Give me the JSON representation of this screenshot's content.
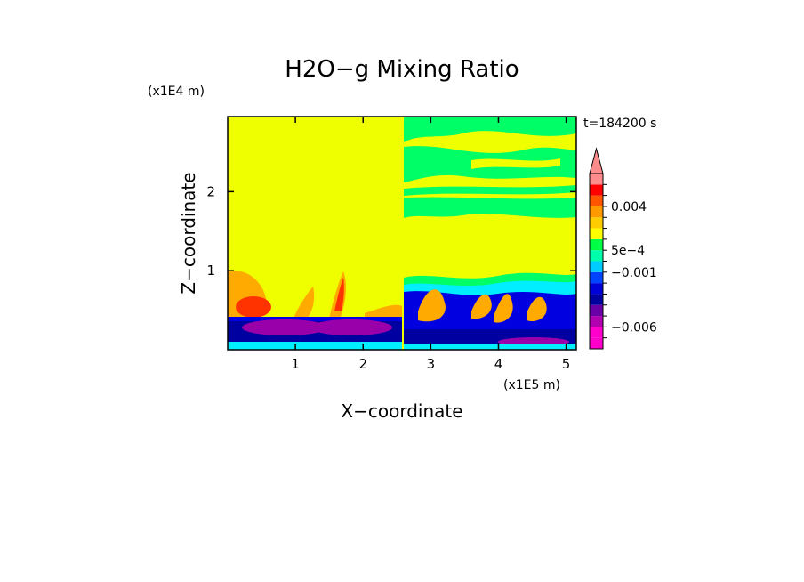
{
  "chart_data": {
    "type": "heatmap",
    "title": "H2O−g Mixing Ratio",
    "xlabel": "X−coordinate",
    "ylabel": "Z−coordinate",
    "x_scale_label": "(x1E5 m)",
    "y_scale_label": "(x1E4 m)",
    "time_label": "t=184200 s",
    "xlim": [
      0,
      5.15
    ],
    "ylim": [
      0,
      2.95
    ],
    "x_ticks": [
      {
        "value": 1,
        "label": "1"
      },
      {
        "value": 2,
        "label": "2"
      },
      {
        "value": 3,
        "label": "3"
      },
      {
        "value": 4,
        "label": "4"
      },
      {
        "value": 5,
        "label": "5"
      }
    ],
    "y_ticks": [
      {
        "value": 1,
        "label": "1"
      },
      {
        "value": 2,
        "label": "2"
      }
    ],
    "colorbar": {
      "levels": [
        {
          "value": -0.008,
          "color": "#ff00cc"
        },
        {
          "value": -0.007,
          "color": "#ff00cc"
        },
        {
          "value": -0.006,
          "color": "#b000b0"
        },
        {
          "value": -0.005,
          "color": "#6a00a8"
        },
        {
          "value": -0.004,
          "color": "#0000a0"
        },
        {
          "value": -0.003,
          "color": "#0000d8"
        },
        {
          "value": -0.002,
          "color": "#0044ff"
        },
        {
          "value": -0.001,
          "color": "#00ccff"
        },
        {
          "value": 0.0,
          "color": "#00ffaa"
        },
        {
          "value": 0.0005,
          "color": "#00ff44"
        },
        {
          "value": 0.001,
          "color": "#ffff00"
        },
        {
          "value": 0.002,
          "color": "#ffcc00"
        },
        {
          "value": 0.003,
          "color": "#ff9900"
        },
        {
          "value": 0.004,
          "color": "#ff5500"
        },
        {
          "value": 0.005,
          "color": "#ff0000"
        },
        {
          "value": 0.006,
          "color": "#ff8c8c"
        }
      ],
      "labels": [
        {
          "value": 0.004,
          "text": "0.004"
        },
        {
          "value": 0.0005,
          "text": "5e−4"
        },
        {
          "value": -0.001,
          "text": "−0.001"
        },
        {
          "value": -0.006,
          "text": "−0.006"
        }
      ],
      "extend": "max"
    },
    "colors": {
      "yellow": "#f0ff00",
      "green": "#00ff66",
      "cyan": "#00eeff",
      "blue": "#0000e0",
      "darkblue": "#0000a0",
      "purple": "#9900aa",
      "orange": "#ffaa00",
      "red": "#ff3300",
      "lightorange": "#ffcc44"
    }
  }
}
